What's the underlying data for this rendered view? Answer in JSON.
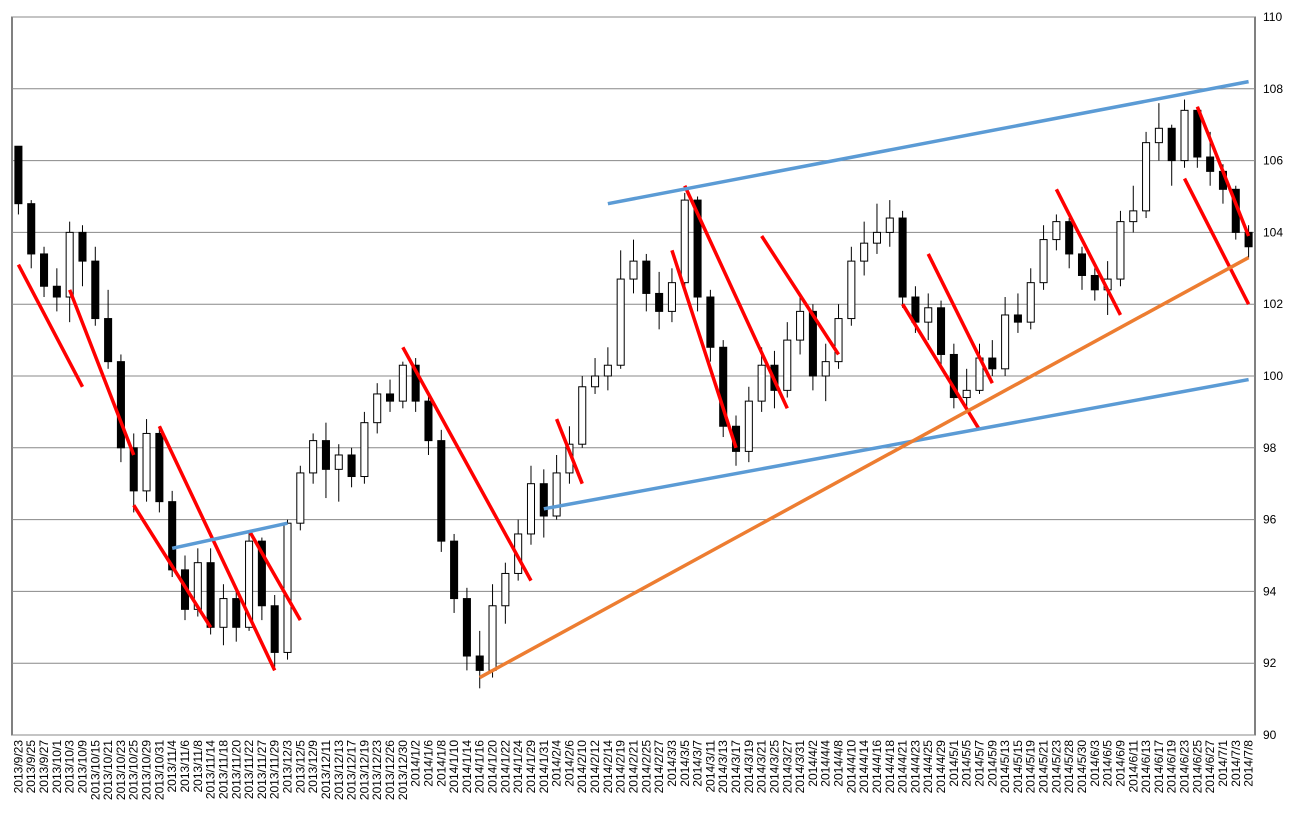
{
  "chart_data": {
    "type": "candlestick",
    "categories": [
      "2013/9/23",
      "2013/9/25",
      "2013/9/27",
      "2013/10/1",
      "2013/10/3",
      "2013/10/9",
      "2013/10/15",
      "2013/10/21",
      "2013/10/23",
      "2013/10/25",
      "2013/10/29",
      "2013/10/31",
      "2013/11/4",
      "2013/11/6",
      "2013/11/8",
      "2013/11/14",
      "2013/11/18",
      "2013/11/20",
      "2013/11/22",
      "2013/11/27",
      "2013/11/29",
      "2013/12/3",
      "2013/12/5",
      "2013/12/9",
      "2013/12/11",
      "2013/12/13",
      "2013/12/17",
      "2013/12/19",
      "2013/12/23",
      "2013/12/26",
      "2013/12/30",
      "2014/1/2",
      "2014/1/6",
      "2014/1/8",
      "2014/1/10",
      "2014/1/14",
      "2014/1/16",
      "2014/1/20",
      "2014/1/22",
      "2014/1/24",
      "2014/1/29",
      "2014/1/31",
      "2014/2/4",
      "2014/2/6",
      "2014/2/10",
      "2014/2/12",
      "2014/2/14",
      "2014/2/19",
      "2014/2/21",
      "2014/2/25",
      "2014/2/27",
      "2014/3/3",
      "2014/3/5",
      "2014/3/7",
      "2014/3/11",
      "2014/3/13",
      "2014/3/17",
      "2014/3/19",
      "2014/3/21",
      "2014/3/25",
      "2014/3/27",
      "2014/3/31",
      "2014/4/2",
      "2014/4/4",
      "2014/4/8",
      "2014/4/10",
      "2014/4/14",
      "2014/4/16",
      "2014/4/18",
      "2014/4/21",
      "2014/4/23",
      "2014/4/25",
      "2014/4/29",
      "2014/5/1",
      "2014/5/5",
      "2014/5/7",
      "2014/5/9",
      "2014/5/13",
      "2014/5/15",
      "2014/5/19",
      "2014/5/21",
      "2014/5/23",
      "2014/5/28",
      "2014/5/30",
      "2014/6/3",
      "2014/6/5",
      "2014/6/9",
      "2014/6/11",
      "2014/6/13",
      "2014/6/17",
      "2014/6/19",
      "2014/6/23",
      "2014/6/25",
      "2014/6/27",
      "2014/7/1",
      "2014/7/3",
      "2014/7/8"
    ],
    "ohlc": [
      [
        106.4,
        106.4,
        104.5,
        104.8
      ],
      [
        104.8,
        104.9,
        103,
        103.4
      ],
      [
        103.4,
        103.6,
        102.2,
        102.5
      ],
      [
        102.5,
        103,
        101.8,
        102.2
      ],
      [
        102.2,
        104.3,
        101.5,
        104
      ],
      [
        104,
        104.2,
        102.5,
        103.2
      ],
      [
        103.2,
        103.6,
        101.4,
        101.6
      ],
      [
        101.6,
        102.4,
        100.2,
        100.4
      ],
      [
        100.4,
        100.6,
        97.6,
        98
      ],
      [
        98,
        98.4,
        96.2,
        96.8
      ],
      [
        96.8,
        98.8,
        96.5,
        98.4
      ],
      [
        98.4,
        98.6,
        96.2,
        96.5
      ],
      [
        96.5,
        96.8,
        94.4,
        94.6
      ],
      [
        94.6,
        95,
        93.2,
        93.5
      ],
      [
        93.5,
        95.2,
        93.3,
        94.8
      ],
      [
        94.8,
        95.2,
        92.8,
        93
      ],
      [
        93,
        94.2,
        92.5,
        93.8
      ],
      [
        93.8,
        94,
        92.6,
        93
      ],
      [
        93,
        95.7,
        92.9,
        95.4
      ],
      [
        95.4,
        95.5,
        93.2,
        93.6
      ],
      [
        93.6,
        93.9,
        91.9,
        92.3
      ],
      [
        92.3,
        96,
        92.1,
        95.9
      ],
      [
        95.9,
        97.5,
        95.7,
        97.3
      ],
      [
        97.3,
        98.4,
        97,
        98.2
      ],
      [
        98.2,
        98.7,
        96.6,
        97.4
      ],
      [
        97.4,
        98.1,
        96.5,
        97.8
      ],
      [
        97.8,
        98,
        96.9,
        97.2
      ],
      [
        97.2,
        99,
        97,
        98.7
      ],
      [
        98.7,
        99.8,
        98.4,
        99.5
      ],
      [
        99.5,
        99.9,
        99,
        99.3
      ],
      [
        99.3,
        100.4,
        99.1,
        100.3
      ],
      [
        100.3,
        100.5,
        99,
        99.3
      ],
      [
        99.3,
        99.5,
        97.8,
        98.2
      ],
      [
        98.2,
        98.5,
        95.1,
        95.4
      ],
      [
        95.4,
        95.6,
        93.4,
        93.8
      ],
      [
        93.8,
        94.1,
        91.8,
        92.2
      ],
      [
        92.2,
        92.9,
        91.3,
        91.8
      ],
      [
        91.8,
        94.2,
        91.6,
        93.6
      ],
      [
        93.6,
        94.8,
        93.1,
        94.5
      ],
      [
        94.5,
        96,
        94.3,
        95.6
      ],
      [
        95.6,
        97.5,
        95.3,
        97
      ],
      [
        97,
        97.4,
        95.5,
        96.1
      ],
      [
        96.1,
        97.8,
        96,
        97.3
      ],
      [
        97.3,
        98.6,
        97,
        98.1
      ],
      [
        98.1,
        100,
        98,
        99.7
      ],
      [
        99.7,
        100.5,
        99.5,
        100
      ],
      [
        100,
        100.8,
        99.6,
        100.3
      ],
      [
        100.3,
        103.5,
        100.2,
        102.7
      ],
      [
        102.7,
        103.8,
        102.3,
        103.2
      ],
      [
        103.2,
        103.4,
        101.8,
        102.3
      ],
      [
        102.3,
        102.9,
        101.3,
        101.8
      ],
      [
        101.8,
        103,
        101.5,
        102.6
      ],
      [
        102.6,
        105.1,
        102.4,
        104.9
      ],
      [
        104.9,
        105,
        101.8,
        102.2
      ],
      [
        102.2,
        102.4,
        100.4,
        100.8
      ],
      [
        100.8,
        101,
        98.3,
        98.6
      ],
      [
        98.6,
        98.9,
        97.5,
        97.9
      ],
      [
        97.9,
        99.7,
        97.6,
        99.3
      ],
      [
        99.3,
        100.8,
        99,
        100.3
      ],
      [
        100.3,
        100.7,
        99.1,
        99.6
      ],
      [
        99.6,
        101.5,
        99.4,
        101
      ],
      [
        101,
        102.3,
        100.6,
        101.8
      ],
      [
        101.8,
        102,
        99.6,
        100
      ],
      [
        100,
        100.9,
        99.3,
        100.4
      ],
      [
        100.4,
        102,
        100.2,
        101.6
      ],
      [
        101.6,
        103.6,
        101.4,
        103.2
      ],
      [
        103.2,
        104.3,
        102.8,
        103.7
      ],
      [
        103.7,
        104.8,
        103.4,
        104
      ],
      [
        104,
        104.9,
        103.6,
        104.4
      ],
      [
        104.4,
        104.6,
        101.9,
        102.2
      ],
      [
        102.2,
        102.5,
        101.2,
        101.5
      ],
      [
        101.5,
        102.3,
        101,
        101.9
      ],
      [
        101.9,
        102.1,
        100.2,
        100.6
      ],
      [
        100.6,
        100.9,
        99.1,
        99.4
      ],
      [
        99.4,
        100.2,
        99.1,
        99.6
      ],
      [
        99.6,
        100.9,
        99.5,
        100.5
      ],
      [
        100.5,
        101,
        100,
        100.2
      ],
      [
        100.2,
        102.2,
        100,
        101.7
      ],
      [
        101.7,
        102.3,
        101.2,
        101.5
      ],
      [
        101.5,
        103,
        101.3,
        102.6
      ],
      [
        102.6,
        104.2,
        102.4,
        103.8
      ],
      [
        103.8,
        104.5,
        103.5,
        104.3
      ],
      [
        104.3,
        104.4,
        103,
        103.4
      ],
      [
        103.4,
        103.6,
        102.4,
        102.8
      ],
      [
        102.8,
        103,
        102.1,
        102.4
      ],
      [
        102.4,
        103.2,
        101.7,
        102.7
      ],
      [
        102.7,
        104.6,
        102.5,
        104.3
      ],
      [
        104.3,
        105.3,
        104,
        104.6
      ],
      [
        104.6,
        106.8,
        104.4,
        106.5
      ],
      [
        106.5,
        107.6,
        106,
        106.9
      ],
      [
        106.9,
        107,
        105.3,
        106
      ],
      [
        106,
        107.7,
        105.8,
        107.4
      ],
      [
        107.4,
        107.5,
        105.8,
        106.1
      ],
      [
        106.1,
        106.8,
        105.3,
        105.7
      ],
      [
        105.7,
        105.9,
        104.8,
        105.2
      ],
      [
        105.2,
        105.3,
        103.8,
        104
      ],
      [
        104,
        104.2,
        103.3,
        103.6
      ]
    ],
    "ylim": [
      90,
      110
    ],
    "yticks": [
      90,
      92,
      94,
      96,
      98,
      100,
      102,
      104,
      106,
      108,
      110
    ],
    "grid": true,
    "up_color": "#ffffff",
    "down_color": "#000000",
    "trendlines": [
      {
        "color": "#ff0000",
        "from": {
          "x": "2013/9/23",
          "y": 103.1
        },
        "to": {
          "x": "2013/10/9",
          "y": 99.7
        }
      },
      {
        "color": "#ff0000",
        "from": {
          "x": "2013/10/3",
          "y": 102.4
        },
        "to": {
          "x": "2013/10/25",
          "y": 97.8
        }
      },
      {
        "color": "#ff0000",
        "from": {
          "x": "2013/10/25",
          "y": 96.4
        },
        "to": {
          "x": "2013/11/14",
          "y": 93
        }
      },
      {
        "color": "#ff0000",
        "from": {
          "x": "2013/10/31",
          "y": 98.6
        },
        "to": {
          "x": "2013/11/29",
          "y": 91.8
        }
      },
      {
        "color": "#ff0000",
        "from": {
          "x": "2013/11/22",
          "y": 95.7
        },
        "to": {
          "x": "2013/12/5",
          "y": 93.2
        }
      },
      {
        "color": "#ff0000",
        "from": {
          "x": "2013/12/30",
          "y": 100.8
        },
        "to": {
          "x": "2014/1/29",
          "y": 94.3
        }
      },
      {
        "color": "#ff0000",
        "from": {
          "x": "2014/2/4",
          "y": 98.8
        },
        "to": {
          "x": "2014/2/10",
          "y": 97
        }
      },
      {
        "color": "#ff0000",
        "from": {
          "x": "2014/3/3",
          "y": 103.5
        },
        "to": {
          "x": "2014/3/17",
          "y": 98
        }
      },
      {
        "color": "#ff0000",
        "from": {
          "x": "2014/3/5",
          "y": 105.3
        },
        "to": {
          "x": "2014/3/27",
          "y": 99.1
        }
      },
      {
        "color": "#ff0000",
        "from": {
          "x": "2014/3/21",
          "y": 103.9
        },
        "to": {
          "x": "2014/4/8",
          "y": 100.6
        }
      },
      {
        "color": "#ff0000",
        "from": {
          "x": "2014/4/21",
          "y": 102
        },
        "to": {
          "x": "2014/5/7",
          "y": 98.5
        }
      },
      {
        "color": "#ff0000",
        "from": {
          "x": "2014/4/25",
          "y": 103.4
        },
        "to": {
          "x": "2014/5/9",
          "y": 99.8
        }
      },
      {
        "color": "#ff0000",
        "from": {
          "x": "2014/5/23",
          "y": 105.2
        },
        "to": {
          "x": "2014/6/9",
          "y": 101.7
        }
      },
      {
        "color": "#ff0000",
        "from": {
          "x": "2014/6/25",
          "y": 107.5
        },
        "to": {
          "x": "2014/7/8",
          "y": 103.9
        }
      },
      {
        "color": "#ff0000",
        "from": {
          "x": "2014/6/23",
          "y": 105.5
        },
        "to": {
          "x": "2014/7/8",
          "y": 102
        }
      },
      {
        "color": "#5b9bd5",
        "from": {
          "x": "2013/11/4",
          "y": 95.2
        },
        "to": {
          "x": "2013/12/3",
          "y": 95.9
        }
      },
      {
        "color": "#5b9bd5",
        "from": {
          "x": "2014/1/31",
          "y": 96.3
        },
        "to": {
          "x": "2014/7/8",
          "y": 99.9
        }
      },
      {
        "color": "#5b9bd5",
        "from": {
          "x": "2014/2/14",
          "y": 104.8
        },
        "to": {
          "x": "2014/7/8",
          "y": 108.2
        }
      },
      {
        "color": "#ed7d31",
        "from": {
          "x": "2014/1/16",
          "y": 91.6
        },
        "to": {
          "x": "2014/7/8",
          "y": 103.3
        }
      }
    ]
  }
}
